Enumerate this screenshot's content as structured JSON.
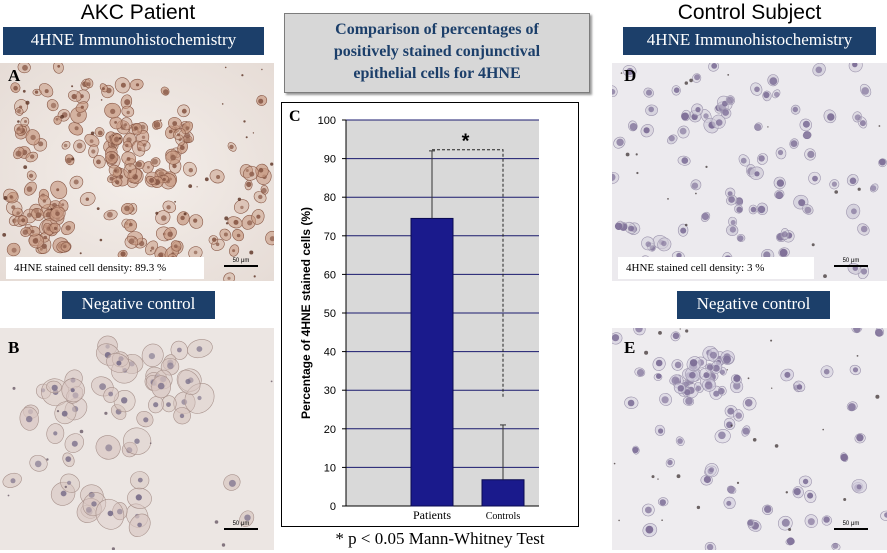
{
  "left_column": {
    "heading": "AKC Patient",
    "banner": "4HNE Immunohistochemistry",
    "panel_a_label": "A",
    "density_label": "4HNE stained cell density:  89.3 %",
    "negative_banner": "Negative control",
    "panel_b_label": "B",
    "scale_label": "50 μm"
  },
  "right_column": {
    "heading": "Control Subject",
    "banner": "4HNE Immunohistochemistry",
    "panel_d_label": "D",
    "density_label": "4HNE stained cell density: 3 %",
    "negative_banner": "Negative control",
    "panel_e_label": "E",
    "scale_label": "50 μm"
  },
  "title_box": {
    "line1": "Comparison of percentages of",
    "line2": "positively stained conjunctival",
    "line3": "epithelial cells for 4HNE"
  },
  "footnote": "* p < 0.05 Mann-Whitney Test",
  "colors": {
    "banner": "#1c3f6a",
    "patients_bar": "#1a1a8c",
    "controls_bar": "#1a1a8c",
    "plot_background": "#d9d9d9",
    "stain_brown": "#8a5a48",
    "stain_purple": "#7b6c95"
  },
  "chart_data": {
    "type": "bar",
    "panel_label": "C",
    "categories": [
      "Patients",
      "Controls"
    ],
    "values": [
      74.5,
      6.8
    ],
    "error_upper": [
      92,
      21
    ],
    "ylabel": "Percentage of 4HNE stained cells (%)",
    "ylim": [
      0,
      100
    ],
    "yticks": [
      0,
      10,
      20,
      30,
      40,
      50,
      60,
      70,
      80,
      90,
      100
    ],
    "grid": true,
    "significance_marker": "*"
  }
}
